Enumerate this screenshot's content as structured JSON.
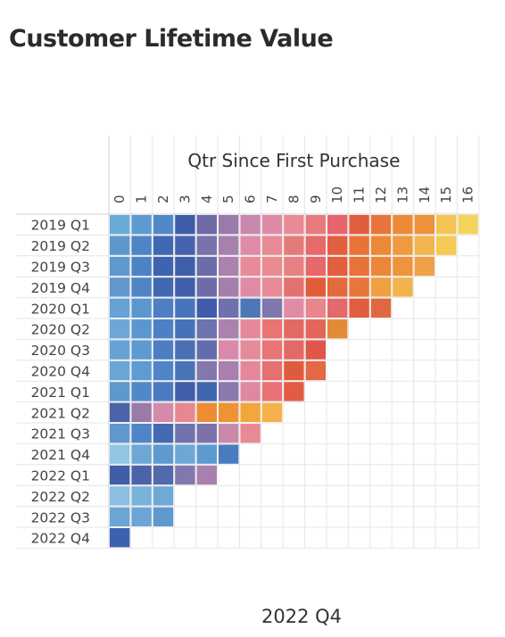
{
  "title": "Customer Lifetime Value",
  "footer": "2022 Q4",
  "chart_data": {
    "type": "heatmap",
    "title": "Customer Lifetime Value",
    "column_header": "Qtr Since First Purchase",
    "columns": [
      "0",
      "1",
      "2",
      "3",
      "4",
      "5",
      "6",
      "7",
      "8",
      "9",
      "10",
      "11",
      "12",
      "13",
      "14",
      "15",
      "16"
    ],
    "rows": [
      "2019 Q1",
      "2019 Q2",
      "2019 Q3",
      "2019 Q4",
      "2020 Q1",
      "2020 Q2",
      "2020 Q3",
      "2020 Q4",
      "2021 Q1",
      "2021 Q2",
      "2021 Q3",
      "2021 Q4",
      "2022 Q1",
      "2022 Q2",
      "2022 Q3",
      "2022 Q4"
    ],
    "cell_colors": [
      [
        "#6aaad7",
        "#5b9bd0",
        "#5088c8",
        "#3f5ea8",
        "#6e6ba8",
        "#9a7aaa",
        "#c888ae",
        "#de8aa6",
        "#e98a96",
        "#e87a7c",
        "#e6646a",
        "#e05e3e",
        "#e8743a",
        "#ee8a36",
        "#ef923c",
        "#f4c553",
        "#f3d45a"
      ],
      [
        "#5e97ce",
        "#4f84c6",
        "#4069b3",
        "#4564ad",
        "#7a72aa",
        "#a880ac",
        "#df8aa8",
        "#e88a96",
        "#e67a7a",
        "#e66a6a",
        "#e25e3f",
        "#e77338",
        "#ed8936",
        "#ef9a3e",
        "#f2b550",
        "#f4ca55",
        null
      ],
      [
        "#5f98cd",
        "#4d82c5",
        "#3f63b0",
        "#3f5fab",
        "#6b6ca8",
        "#ac82ad",
        "#e88a9a",
        "#ea8b90",
        "#e88182",
        "#e6686a",
        "#e25e3e",
        "#e7733a",
        "#ec8738",
        "#ef933c",
        "#f0a045",
        null,
        null
      ],
      [
        "#6198ce",
        "#4f84c6",
        "#4067b1",
        "#3f5fac",
        "#6d6ca8",
        "#a47fac",
        "#e08aa6",
        "#e98b96",
        "#e67070",
        "#e25c3c",
        "#e26a3b",
        "#e7763a",
        "#efa040",
        "#f1b34d",
        null,
        null,
        null
      ],
      [
        "#66a2d4",
        "#5b97ce",
        "#4c80c2",
        "#4874b9",
        "#3e5cab",
        "#6f70ad",
        "#4d78b8",
        "#7e78ad",
        "#e28ba4",
        "#e8858d",
        "#e4686c",
        "#e05e3f",
        "#e06840",
        null,
        null,
        null,
        null
      ],
      [
        "#6ea7d6",
        "#5b97ce",
        "#4e80c4",
        "#4872b7",
        "#6d73ae",
        "#ab81ae",
        "#e5889a",
        "#e87474",
        "#e26a65",
        "#e3665b",
        "#e38a38",
        null,
        null,
        null,
        null,
        null,
        null
      ],
      [
        "#66a2d4",
        "#5c9ad0",
        "#4b7ec2",
        "#4a6fb5",
        "#636cac",
        "#d98aaa",
        "#e58a99",
        "#e67574",
        "#e26a66",
        "#e0564a",
        null,
        null,
        null,
        null,
        null,
        null,
        null
      ],
      [
        "#6aa5d5",
        "#5d9bd0",
        "#4f84c6",
        "#4a74b8",
        "#8377ad",
        "#a780ad",
        "#e6869a",
        "#e47070",
        "#e05b3d",
        "#e26945",
        null,
        null,
        null,
        null,
        null,
        null,
        null
      ],
      [
        "#5f98cd",
        "#5089c8",
        "#4a7bc0",
        "#3f5fab",
        "#4066b0",
        "#8b78ad",
        "#e088a2",
        "#e77376",
        "#e15b45",
        null,
        null,
        null,
        null,
        null,
        null,
        null,
        null
      ],
      [
        "#4c63aa",
        "#9b7aaa",
        "#d48aa8",
        "#e6888f",
        "#ec8c33",
        "#ef9234",
        "#f3a63c",
        "#f3b24b",
        null,
        null,
        null,
        null,
        null,
        null,
        null,
        null,
        null
      ],
      [
        "#5f98cd",
        "#4f84c6",
        "#4569b2",
        "#7172ac",
        "#7a72aa",
        "#c88aa8",
        "#e88a93",
        null,
        null,
        null,
        null,
        null,
        null,
        null,
        null,
        null,
        null
      ],
      [
        "#93c6e2",
        "#6ea7d6",
        "#5c9ad0",
        "#6ea7d6",
        "#5c9ad0",
        "#4a7bc0",
        null,
        null,
        null,
        null,
        null,
        null,
        null,
        null,
        null,
        null,
        null
      ],
      [
        "#3f5ea8",
        "#4b63a8",
        "#5468ac",
        "#8278ae",
        "#a880ae",
        null,
        null,
        null,
        null,
        null,
        null,
        null,
        null,
        null,
        null,
        null,
        null
      ],
      [
        "#8bbee0",
        "#79b2da",
        "#6fa9d6",
        null,
        null,
        null,
        null,
        null,
        null,
        null,
        null,
        null,
        null,
        null,
        null,
        null,
        null
      ],
      [
        "#6aa5d5",
        "#6aa5d5",
        "#5f98cd",
        null,
        null,
        null,
        null,
        null,
        null,
        null,
        null,
        null,
        null,
        null,
        null,
        null,
        null
      ],
      [
        "#3d62ad",
        null,
        null,
        null,
        null,
        null,
        null,
        null,
        null,
        null,
        null,
        null,
        null,
        null,
        null,
        null,
        null
      ]
    ],
    "grid": true
  }
}
